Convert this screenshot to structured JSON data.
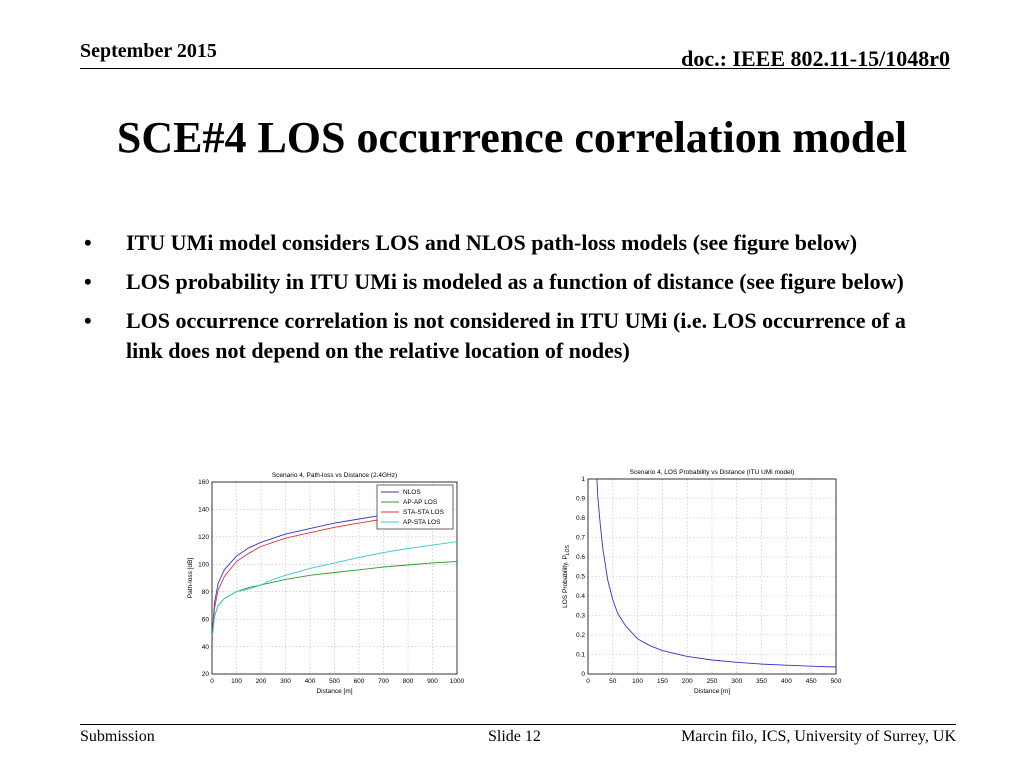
{
  "header": {
    "date": "September 2015",
    "doc": "doc.: IEEE 802.11-15/1048r0"
  },
  "title": "SCE#4 LOS occurrence correlation model",
  "bullets": [
    "ITU UMi model considers LOS and NLOS path-loss models (see figure below)",
    "LOS probability in ITU UMi is modeled as a function of distance (see figure below)",
    "LOS occurrence correlation is not considered in ITU UMi (i.e. LOS occurrence of a link does not depend on the relative location of nodes)"
  ],
  "footer": {
    "left": "Submission",
    "center": "Slide 12",
    "right": "Marcin filo, ICS, University of Surrey, UK"
  },
  "chart_data": [
    {
      "type": "line",
      "title": "Scenario 4, Path-loss vs Distance (2.4GHz)",
      "xlabel": "Distance [m]",
      "ylabel": "Path-loss [dB]",
      "xlim": [
        0,
        1000
      ],
      "ylim": [
        20,
        160
      ],
      "xticks": [
        0,
        100,
        200,
        300,
        400,
        500,
        600,
        700,
        800,
        900,
        1000
      ],
      "yticks": [
        20,
        40,
        60,
        80,
        100,
        120,
        140,
        160
      ],
      "grid": true,
      "legend": "top-right",
      "series": [
        {
          "name": "NLOS",
          "color": "#3333cc",
          "x": [
            1,
            10,
            25,
            50,
            100,
            150,
            200,
            300,
            400,
            500,
            600,
            700
          ],
          "y": [
            47,
            72,
            86,
            96,
            106,
            112,
            116,
            122,
            126,
            130,
            133,
            136
          ]
        },
        {
          "name": "AP-AP LOS",
          "color": "#339933",
          "x": [
            1,
            10,
            25,
            50,
            100,
            150,
            200,
            300,
            400,
            500,
            600,
            700,
            800,
            900,
            1000
          ],
          "y": [
            47,
            62,
            70,
            75,
            80,
            83,
            85,
            89,
            92,
            94,
            96,
            98,
            99.5,
            101,
            102
          ]
        },
        {
          "name": "STA-STA LOS",
          "color": "#dd3333",
          "x": [
            1,
            10,
            25,
            50,
            100,
            150,
            200,
            300,
            400,
            500,
            600,
            700
          ],
          "y": [
            44,
            68,
            81,
            91,
            102,
            108,
            113,
            119,
            123,
            127,
            130,
            133
          ]
        },
        {
          "name": "AP-STA LOS",
          "color": "#33cccc",
          "x": [
            1,
            10,
            25,
            50,
            100,
            150,
            200,
            250,
            300,
            400,
            500,
            600,
            700,
            800,
            900,
            1000
          ],
          "y": [
            47,
            62,
            70,
            75,
            80,
            82,
            85,
            89,
            92,
            97,
            101,
            105,
            108.5,
            111.5,
            114,
            116.5
          ]
        }
      ]
    },
    {
      "type": "line",
      "title": "Scenario 4, LOS Probability vs Distance (ITU UMi model)",
      "xlabel": "Distance [m]",
      "ylabel": "LOS Probability, P",
      "ylabel_sub": "LOS",
      "xlim": [
        0,
        500
      ],
      "ylim": [
        0,
        1
      ],
      "xticks": [
        0,
        50,
        100,
        150,
        200,
        250,
        300,
        350,
        400,
        450,
        500
      ],
      "yticks": [
        0,
        0.1,
        0.2,
        0.3,
        0.4,
        0.5,
        0.6,
        0.7,
        0.8,
        0.9,
        1
      ],
      "grid": true,
      "series": [
        {
          "color": "#3333cc",
          "x": [
            18,
            20,
            25,
            30,
            40,
            50,
            60,
            75,
            100,
            125,
            150,
            200,
            250,
            300,
            350,
            400,
            450,
            500
          ],
          "y": [
            1.0,
            0.9,
            0.76,
            0.64,
            0.48,
            0.38,
            0.31,
            0.25,
            0.18,
            0.145,
            0.12,
            0.09,
            0.072,
            0.06,
            0.051,
            0.045,
            0.04,
            0.036
          ]
        }
      ]
    }
  ]
}
